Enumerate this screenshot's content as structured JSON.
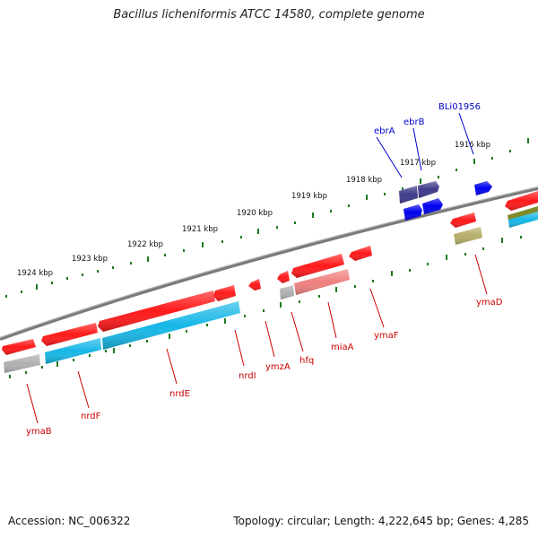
{
  "title": "Bacillus licheniformis ATCC 14580, complete genome",
  "footer": {
    "accession": "Accession: NC_006322",
    "topology": "Topology: circular; Length: 4,222,645 bp; Genes: 4,285"
  },
  "colors": {
    "backbone": "#7a7a7a",
    "tick": "#1e7a1e",
    "forward_label": "#0000cc",
    "reverse_label": "#cc0000",
    "cds_red": "#ff1a1a",
    "cds_blue": "#0000ee",
    "cds_navy": "#3f3a8a",
    "rna_cyan": "#17b7e6",
    "pseudo_pink": "#f08080",
    "grey": "#b0b0b0",
    "olive": "#b5ad6a",
    "dark_olive": "#7f8a28"
  },
  "scale_labels": [
    "1924 kbp",
    "1923 kbp",
    "1922 kbp",
    "1921 kbp",
    "1920 kbp",
    "1919 kbp",
    "1918 kbp",
    "1917 kbp",
    "1916 kbp"
  ],
  "forward_gene_labels": [
    "ebrA",
    "ebrB",
    "BLi01956"
  ],
  "reverse_gene_labels": [
    "ymaB",
    "nrdF",
    "nrdE",
    "nrdI",
    "ymzA",
    "hfq",
    "miaA",
    "ymaF",
    "ymaD"
  ]
}
